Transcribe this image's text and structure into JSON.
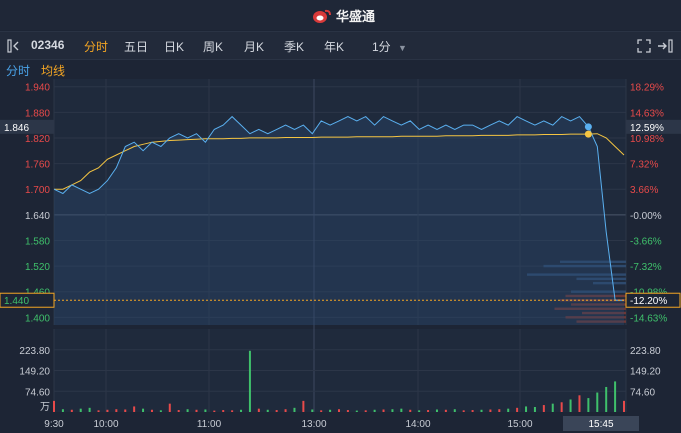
{
  "app": {
    "brand": "华盛通"
  },
  "toolbar": {
    "code": "02346",
    "tabs": [
      "分时",
      "五日",
      "日K",
      "周K",
      "月K",
      "季K",
      "年K",
      "1分"
    ],
    "active_tab": "分时"
  },
  "subtabs": {
    "minute": "分时",
    "ma": "均线"
  },
  "colors": {
    "up": "#e84a4a",
    "down": "#3fc06b",
    "price_line": "#5ab0f0",
    "avg_line": "#f5c542",
    "accent": "#f5a623"
  },
  "chart_data": {
    "type": "line",
    "prev_close": 1.64,
    "left_ticks": [
      "1.940",
      "1.880",
      "1.820",
      "1.760",
      "1.700",
      "1.640",
      "1.580",
      "1.520",
      "1.460",
      "1.400"
    ],
    "right_ticks": [
      "18.29%",
      "14.63%",
      "10.98%",
      "7.32%",
      "3.66%",
      "-0.00%",
      "-3.66%",
      "-7.32%",
      "-10.98%",
      "-14.63%"
    ],
    "current_price_label": "1.846",
    "current_pct_label": "12.59%",
    "cursor_price_label": "1.440",
    "cursor_pct_label": "-12.20%",
    "volume_ticks": [
      "223.80",
      "149.20",
      "74.60"
    ],
    "volume_unit": "万",
    "x_labels": [
      "9:30",
      "10:00",
      "11:00",
      "13:00",
      "14:00",
      "15:00"
    ],
    "x_cursor_label": "15:45",
    "price_series": [
      1.7,
      1.69,
      1.71,
      1.7,
      1.69,
      1.7,
      1.72,
      1.75,
      1.8,
      1.81,
      1.79,
      1.81,
      1.8,
      1.82,
      1.83,
      1.82,
      1.83,
      1.81,
      1.84,
      1.85,
      1.87,
      1.85,
      1.83,
      1.84,
      1.83,
      1.84,
      1.85,
      1.84,
      1.85,
      1.83,
      1.86,
      1.85,
      1.86,
      1.87,
      1.86,
      1.87,
      1.85,
      1.87,
      1.86,
      1.85,
      1.86,
      1.84,
      1.85,
      1.84,
      1.85,
      1.84,
      1.85,
      1.85,
      1.84,
      1.85,
      1.86,
      1.85,
      1.87,
      1.86,
      1.85,
      1.86,
      1.85,
      1.87,
      1.86,
      1.87,
      1.846,
      1.8,
      1.6,
      1.44,
      1.44
    ],
    "avg_series": [
      1.7,
      1.7,
      1.71,
      1.72,
      1.74,
      1.75,
      1.77,
      1.78,
      1.79,
      1.8,
      1.805,
      1.81,
      1.812,
      1.814,
      1.815,
      1.816,
      1.817,
      1.818,
      1.818,
      1.818,
      1.819,
      1.819,
      1.82,
      1.82,
      1.82,
      1.82,
      1.821,
      1.821,
      1.821,
      1.821,
      1.822,
      1.822,
      1.822,
      1.822,
      1.823,
      1.823,
      1.823,
      1.823,
      1.823,
      1.824,
      1.824,
      1.824,
      1.824,
      1.824,
      1.825,
      1.825,
      1.825,
      1.825,
      1.826,
      1.826,
      1.826,
      1.826,
      1.827,
      1.827,
      1.827,
      1.828,
      1.828,
      1.828,
      1.829,
      1.829,
      1.829,
      1.83,
      1.82,
      1.8,
      1.78
    ],
    "volume_series": [
      40,
      10,
      8,
      12,
      15,
      6,
      8,
      10,
      9,
      20,
      12,
      8,
      6,
      30,
      7,
      10,
      8,
      9,
      5,
      7,
      6,
      8,
      220,
      12,
      8,
      7,
      10,
      15,
      40,
      9,
      6,
      8,
      10,
      7,
      5,
      6,
      8,
      9,
      10,
      12,
      8,
      6,
      7,
      9,
      8,
      10,
      6,
      7,
      8,
      9,
      10,
      12,
      15,
      20,
      18,
      25,
      30,
      35,
      45,
      60,
      50,
      70,
      90,
      110,
      40
    ],
    "volume_max": 298.4,
    "depth_bars": [
      {
        "price": 1.53,
        "value": 0.6,
        "side": "bid"
      },
      {
        "price": 1.52,
        "value": 0.75,
        "side": "bid"
      },
      {
        "price": 1.5,
        "value": 0.9,
        "side": "bid"
      },
      {
        "price": 1.49,
        "value": 0.45,
        "side": "bid"
      },
      {
        "price": 1.48,
        "value": 0.3,
        "side": "bid"
      },
      {
        "price": 1.46,
        "value": 0.5,
        "side": "bid"
      },
      {
        "price": 1.45,
        "value": 0.55,
        "side": "ask"
      },
      {
        "price": 1.44,
        "value": 0.6,
        "side": "ask"
      },
      {
        "price": 1.43,
        "value": 0.5,
        "side": "ask"
      },
      {
        "price": 1.42,
        "value": 0.65,
        "side": "ask"
      },
      {
        "price": 1.41,
        "value": 0.4,
        "side": "ask"
      },
      {
        "price": 1.4,
        "value": 0.55,
        "side": "ask"
      },
      {
        "price": 1.39,
        "value": 0.45,
        "side": "ask"
      }
    ]
  }
}
